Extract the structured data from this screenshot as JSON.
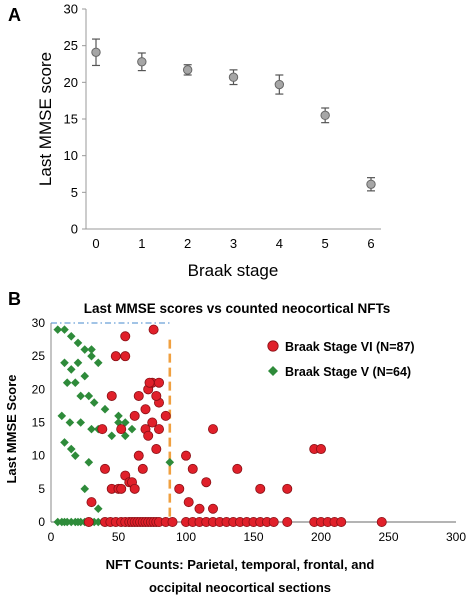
{
  "panels": {
    "a": "A",
    "b": "B"
  },
  "chart_data": [
    {
      "type": "scatter",
      "title": "",
      "xlabel": "Braak stage",
      "ylabel": "Last MMSE score",
      "xlim": [
        0,
        6
      ],
      "ylim": [
        0,
        30
      ],
      "xticks": [
        "0",
        "1",
        "2",
        "3",
        "4",
        "5",
        "6"
      ],
      "yticks": [
        "0",
        "5",
        "10",
        "15",
        "20",
        "25",
        "30"
      ],
      "grid": false,
      "marker_color": "#a6a6a6",
      "series": [
        {
          "x": [
            0,
            1,
            2,
            3,
            4,
            5,
            6
          ],
          "values": [
            24.1,
            22.8,
            21.7,
            20.7,
            19.7,
            15.5,
            6.1
          ],
          "error": [
            1.8,
            1.2,
            0.7,
            1.0,
            1.3,
            1.0,
            0.9
          ]
        }
      ]
    },
    {
      "type": "scatter",
      "title": "Last MMSE scores vs counted neocortical NFTs",
      "xlabel_line1": "NFT Counts:  Parietal, temporal, frontal, and",
      "xlabel_line2": "occipital neocortical sections",
      "ylabel": "Last MMSE Score",
      "xlim": [
        0,
        300
      ],
      "ylim": [
        0,
        30
      ],
      "xticks": [
        "0",
        "50",
        "100",
        "150",
        "200",
        "250",
        "300"
      ],
      "yticks": [
        "0",
        "5",
        "10",
        "15",
        "20",
        "25",
        "30"
      ],
      "legend_position": "top-right",
      "reference_lines": [
        {
          "orientation": "vertical",
          "x": 88,
          "color": "#f0a040",
          "style": "dashed"
        },
        {
          "orientation": "horizontal",
          "y": 30,
          "color": "#6aa0d8",
          "style": "dash-dot"
        }
      ],
      "series": [
        {
          "name": "Braak Stage VI  (N=87)",
          "marker": "circle",
          "color": "#e0202a",
          "x": [
            28,
            40,
            44,
            48,
            52,
            55,
            58,
            60,
            62,
            64,
            66,
            68,
            70,
            72,
            74,
            76,
            78,
            80,
            85,
            90,
            100,
            105,
            110,
            115,
            120,
            125,
            130,
            135,
            140,
            145,
            150,
            155,
            160,
            165,
            175,
            195,
            200,
            205,
            210,
            215,
            245,
            30,
            40,
            45,
            50,
            52,
            55,
            58,
            60,
            62,
            65,
            68,
            70,
            72,
            75,
            78,
            80,
            100,
            105,
            115,
            120,
            138,
            155,
            175,
            195,
            200,
            38,
            52,
            55,
            62,
            70,
            80,
            85,
            95,
            102,
            110,
            120,
            65,
            72,
            75,
            78,
            76,
            48,
            45,
            55,
            73,
            80
          ],
          "values": [
            0,
            0,
            0,
            0,
            0,
            0,
            0,
            0,
            0,
            0,
            0,
            0,
            0,
            0,
            0,
            0,
            0,
            0,
            0,
            0,
            0,
            0,
            0,
            0,
            0,
            0,
            0,
            0,
            0,
            0,
            0,
            0,
            0,
            0,
            0,
            0,
            0,
            0,
            0,
            0,
            0,
            3,
            8,
            5,
            5,
            5,
            7,
            6,
            6,
            5,
            10,
            8,
            14,
            13,
            15,
            11,
            14,
            10,
            8,
            6,
            14,
            8,
            5,
            5,
            11,
            11,
            14,
            14,
            28,
            16,
            17,
            18,
            16,
            5,
            3,
            2,
            2,
            19,
            20,
            21,
            19,
            29,
            25,
            19,
            25,
            21,
            21
          ]
        },
        {
          "name": "Braak Stage V  (N=64)",
          "marker": "diamond",
          "color": "#2e8b3a",
          "x": [
            5,
            8,
            10,
            12,
            15,
            18,
            20,
            22,
            25,
            28,
            30,
            32,
            35,
            38,
            40,
            42,
            45,
            48,
            50,
            52,
            55,
            58,
            60,
            65,
            70,
            75,
            88,
            5,
            10,
            15,
            20,
            25,
            30,
            10,
            15,
            20,
            25,
            30,
            35,
            12,
            18,
            22,
            28,
            32,
            40,
            50,
            8,
            14,
            22,
            30,
            35,
            45,
            55,
            10,
            18,
            28,
            40,
            50,
            55,
            60,
            25,
            35,
            88,
            15
          ],
          "values": [
            0,
            0,
            0,
            0,
            0,
            0,
            0,
            0,
            0,
            0,
            0,
            0,
            0,
            0,
            0,
            0,
            0,
            0,
            0,
            0,
            0,
            0,
            0,
            0,
            0,
            0,
            0,
            29,
            29,
            28,
            27,
            26,
            26,
            24,
            23,
            24,
            22,
            25,
            24,
            21,
            21,
            19,
            19,
            18,
            17,
            16,
            16,
            15,
            15,
            14,
            14,
            13,
            13,
            12,
            10,
            9,
            8,
            15,
            15,
            14,
            5,
            2,
            9,
            11
          ]
        }
      ]
    }
  ]
}
